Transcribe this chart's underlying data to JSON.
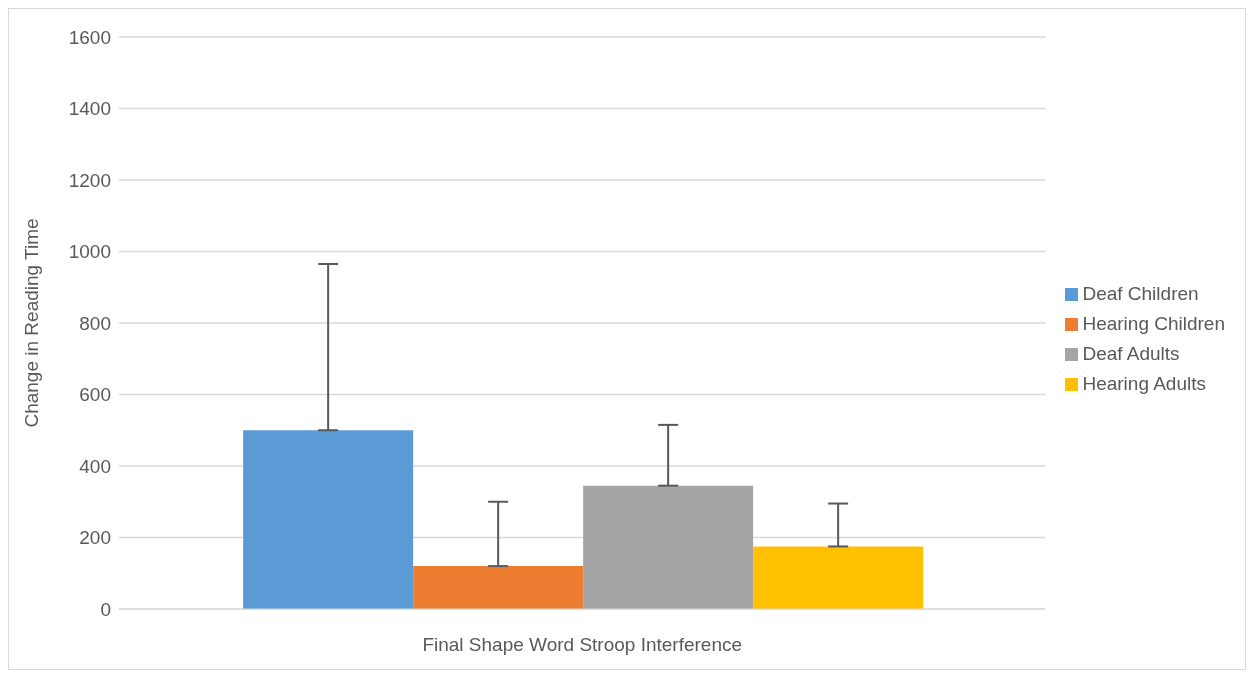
{
  "chart_data": {
    "type": "bar",
    "xlabel": "Final Shape Word Stroop Interference",
    "ylabel": "Change in Reading Time",
    "categories": [
      null
    ],
    "series": [
      {
        "name": "Deaf Children",
        "color": "#5b9bd5",
        "values": [
          500
        ],
        "errors": [
          [
            500,
            965
          ]
        ]
      },
      {
        "name": "Hearing Children",
        "color": "#ed7d31",
        "values": [
          120
        ],
        "errors": [
          [
            120,
            300
          ]
        ]
      },
      {
        "name": "Deaf Adults",
        "color": "#a5a5a5",
        "values": [
          345
        ],
        "errors": [
          [
            345,
            515
          ]
        ]
      },
      {
        "name": "Hearing Adults",
        "color": "#ffc000",
        "values": [
          175
        ],
        "errors": [
          [
            175,
            295
          ]
        ]
      }
    ],
    "ylim": [
      0,
      1600
    ],
    "yticks": [
      0,
      200,
      400,
      600,
      800,
      1000,
      1200,
      1400,
      1600
    ],
    "grid": "y",
    "legend": "right"
  }
}
